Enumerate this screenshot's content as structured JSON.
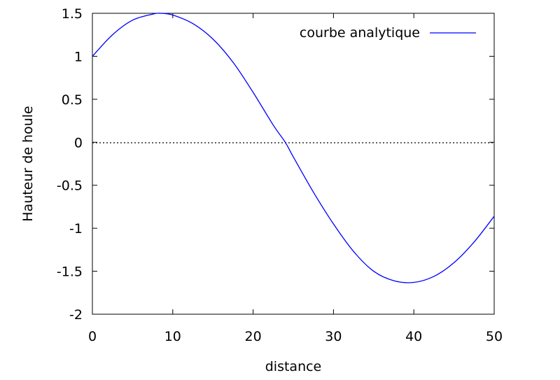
{
  "chart_data": {
    "type": "line",
    "xlabel": "distance",
    "ylabel": "Hauteur de houle",
    "xlim": [
      0,
      50
    ],
    "ylim": [
      -2,
      1.5
    ],
    "x_ticks": [
      "0",
      "10",
      "20",
      "30",
      "40",
      "50"
    ],
    "y_ticks": [
      "1.5",
      "1",
      "0.5",
      "0",
      "-0.5",
      "-1",
      "-1.5",
      "-2"
    ],
    "legend_position": "top-right",
    "zero_line": true,
    "series": [
      {
        "name": "courbe analytique",
        "color": "#0000ff",
        "x": [
          0,
          2.5,
          5,
          7.5,
          8.5,
          10,
          12.5,
          15,
          17.5,
          20,
          22.5,
          24,
          25,
          27.5,
          30,
          32.5,
          35,
          37.5,
          40,
          42.5,
          45,
          47.5,
          50
        ],
        "y": [
          1.0,
          1.25,
          1.42,
          1.49,
          1.5,
          1.48,
          1.38,
          1.2,
          0.93,
          0.58,
          0.2,
          0.0,
          -0.17,
          -0.58,
          -0.95,
          -1.27,
          -1.5,
          -1.61,
          -1.63,
          -1.56,
          -1.4,
          -1.16,
          -0.86
        ]
      }
    ]
  }
}
